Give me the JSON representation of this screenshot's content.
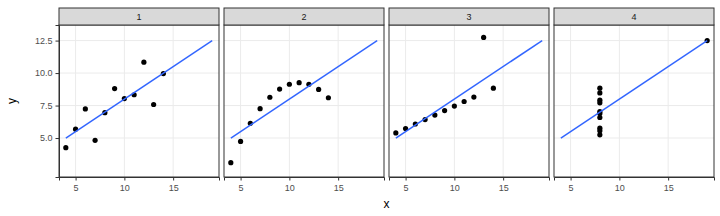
{
  "chart_data": {
    "type": "scatter",
    "x_label": "x",
    "y_label": "y",
    "xlim": [
      3.3,
      19.7
    ],
    "ylim": [
      2.0,
      13.7
    ],
    "xticks": [
      5,
      10,
      15
    ],
    "yticks": [
      {
        "value": 5,
        "label": "5.0"
      },
      {
        "value": 7.5,
        "label": "7.5"
      },
      {
        "value": 10,
        "label": "10.0"
      },
      {
        "value": 12.5,
        "label": "12.5"
      }
    ],
    "grid": true,
    "series": [
      {
        "name": "1",
        "color": "#000000",
        "marker": "circle",
        "x": [
          10,
          8,
          13,
          9,
          11,
          14,
          6,
          4,
          12,
          7,
          5
        ],
        "values": [
          8.04,
          6.95,
          7.58,
          8.81,
          8.33,
          9.96,
          7.24,
          4.26,
          10.84,
          4.82,
          5.68
        ],
        "fit_color": "#3366ff",
        "fit_x": [
          4,
          19
        ],
        "fit_values": [
          5.0,
          12.5
        ]
      },
      {
        "name": "2",
        "color": "#000000",
        "marker": "circle",
        "x": [
          10,
          8,
          13,
          9,
          11,
          14,
          6,
          4,
          12,
          7,
          5
        ],
        "values": [
          9.14,
          8.14,
          8.74,
          8.77,
          9.26,
          8.1,
          6.13,
          3.1,
          9.13,
          7.26,
          4.74
        ],
        "fit_color": "#3366ff",
        "fit_x": [
          4,
          19
        ],
        "fit_values": [
          5.0,
          12.5
        ]
      },
      {
        "name": "3",
        "color": "#000000",
        "marker": "circle",
        "x": [
          10,
          8,
          13,
          9,
          11,
          14,
          6,
          4,
          12,
          7,
          5
        ],
        "values": [
          7.46,
          6.77,
          12.74,
          7.11,
          7.81,
          8.84,
          6.08,
          5.39,
          8.15,
          6.42,
          5.73
        ],
        "fit_color": "#3366ff",
        "fit_x": [
          4,
          19
        ],
        "fit_values": [
          5.0,
          12.5
        ]
      },
      {
        "name": "4",
        "color": "#000000",
        "marker": "circle",
        "x": [
          8,
          8,
          8,
          8,
          8,
          8,
          8,
          19,
          8,
          8,
          8
        ],
        "values": [
          6.58,
          5.76,
          7.71,
          8.84,
          8.47,
          7.04,
          5.25,
          12.5,
          5.56,
          7.91,
          6.89
        ],
        "fit_color": "#3366ff",
        "fit_x": [
          4,
          19
        ],
        "fit_values": [
          5.0,
          12.5
        ]
      }
    ]
  }
}
